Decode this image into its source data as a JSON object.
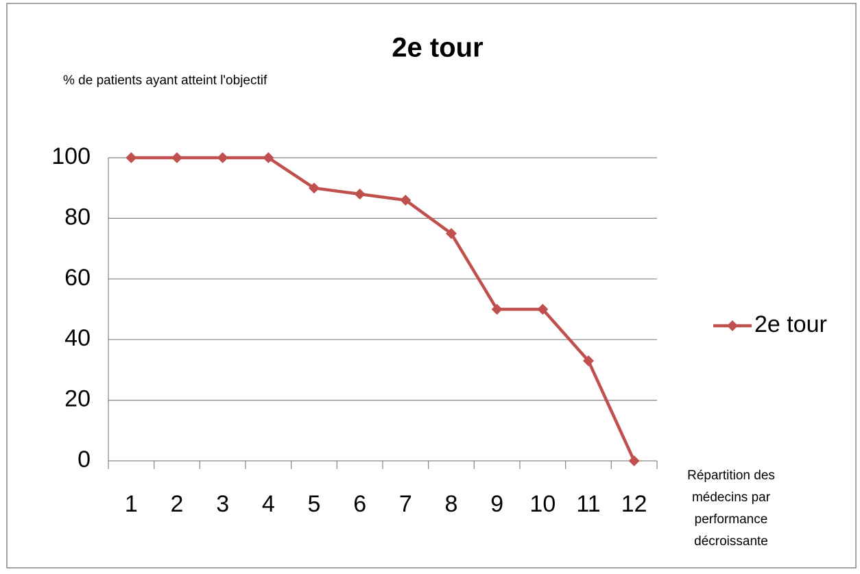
{
  "chart_data": {
    "type": "line",
    "title": "2e tour",
    "ylabel": "% de patients ayant atteint l'objectif",
    "xlabel": [
      "Répartition des",
      "médecins par",
      "performance",
      "décroissante"
    ],
    "categories": [
      1,
      2,
      3,
      4,
      5,
      6,
      7,
      8,
      9,
      10,
      11,
      12
    ],
    "series": [
      {
        "name": "2e tour",
        "color": "#c0504d",
        "values": [
          100,
          100,
          100,
          100,
          90,
          88,
          86,
          75,
          50,
          50,
          33,
          0
        ]
      }
    ],
    "ylim": [
      0,
      100
    ],
    "yticks": [
      0,
      20,
      40,
      60,
      80,
      100
    ],
    "grid": true,
    "legend": "right"
  }
}
